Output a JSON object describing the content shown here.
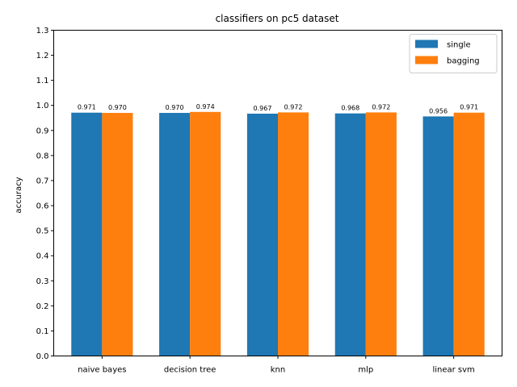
{
  "chart_data": {
    "type": "bar",
    "title": "classifiers on pc5 dataset",
    "xlabel": "",
    "ylabel": "accuracy",
    "categories": [
      "naive bayes",
      "decision tree",
      "knn",
      "mlp",
      "linear svm"
    ],
    "series": [
      {
        "name": "single",
        "color": "#1f77b4",
        "values": [
          0.971,
          0.97,
          0.967,
          0.968,
          0.956
        ],
        "labels": [
          "0.971",
          "0.970",
          "0.967",
          "0.968",
          "0.956"
        ]
      },
      {
        "name": "bagging",
        "color": "#ff7f0e",
        "values": [
          0.97,
          0.974,
          0.972,
          0.972,
          0.971
        ],
        "labels": [
          "0.970",
          "0.974",
          "0.972",
          "0.972",
          "0.971"
        ]
      }
    ],
    "ylim": [
      0,
      1.3
    ],
    "yticks": [
      "0.0",
      "0.1",
      "0.2",
      "0.3",
      "0.4",
      "0.5",
      "0.6",
      "0.7",
      "0.8",
      "0.9",
      "1.0",
      "1.1",
      "1.2",
      "1.3"
    ],
    "grid": false,
    "legend_position": "top-right"
  }
}
